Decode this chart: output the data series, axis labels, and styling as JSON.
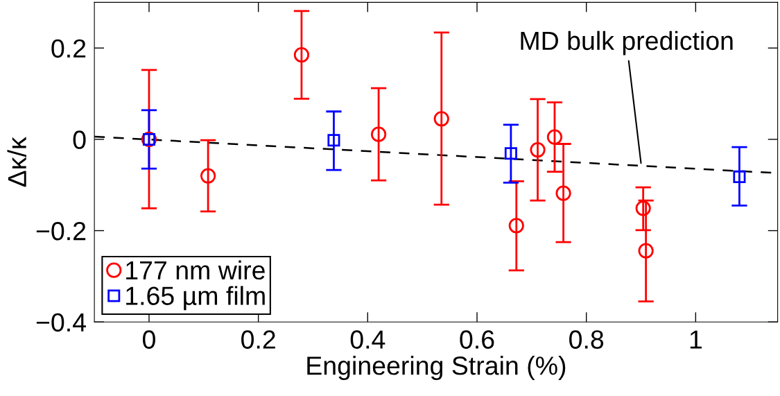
{
  "chart_data": {
    "type": "scatter",
    "xlabel": "Engineering Strain (%)",
    "ylabel": "Δκ/κ",
    "xlim": [
      -0.1,
      1.15
    ],
    "ylim": [
      -0.4,
      0.3
    ],
    "xticks": [
      0,
      0.2,
      0.4,
      0.6,
      0.8,
      1
    ],
    "yticks": [
      -0.4,
      -0.2,
      0,
      0.2
    ],
    "grid": false,
    "legend": "bottom left",
    "annotations": [
      {
        "text": "MD bulk prediction",
        "x": 0.9,
        "y": -0.052
      }
    ],
    "series": [
      {
        "name": "177 nm wire",
        "color": "#ff0000",
        "marker": "circle",
        "x": [
          0,
          0.108,
          0.279,
          0.42,
          0.535,
          0.672,
          0.711,
          0.742,
          0.758,
          0.904,
          0.909
        ],
        "values": [
          0,
          -0.08,
          0.185,
          0.011,
          0.045,
          -0.189,
          -0.023,
          0.005,
          -0.118,
          -0.151,
          -0.244
        ],
        "errors": [
          [
            -0.151,
            0.152
          ],
          [
            -0.158,
            -0.002
          ],
          [
            0.089,
            0.281
          ],
          [
            -0.09,
            0.112
          ],
          [
            -0.143,
            0.234
          ],
          [
            -0.287,
            -0.092
          ],
          [
            -0.134,
            0.088
          ],
          [
            -0.071,
            0.081
          ],
          [
            -0.225,
            -0.01
          ],
          [
            -0.199,
            -0.105
          ],
          [
            -0.355,
            -0.134
          ]
        ]
      },
      {
        "name": "1.65 µm film",
        "color": "#0000ff",
        "marker": "square",
        "x": [
          0,
          0.338,
          0.662,
          1.08
        ],
        "values": [
          0,
          -0.002,
          -0.031,
          -0.082
        ],
        "errors": [
          [
            -0.064,
            0.064
          ],
          [
            -0.067,
            0.061
          ],
          [
            -0.095,
            0.032
          ],
          [
            -0.145,
            -0.017
          ]
        ]
      },
      {
        "type": "line",
        "color": "#000000",
        "marker": "none",
        "line_style": "dashed",
        "x": [
          -0.1,
          1.15
        ],
        "values": [
          0.006,
          -0.074
        ]
      }
    ]
  }
}
